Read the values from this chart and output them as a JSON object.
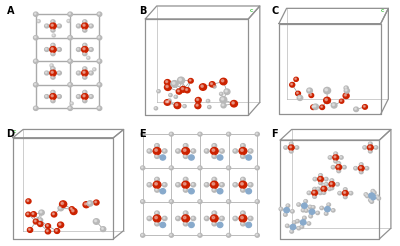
{
  "panels": [
    "A",
    "B",
    "C",
    "D",
    "E",
    "F"
  ],
  "figure_bg": "#ffffff",
  "box_color": "#909090",
  "red_color": "#cc2200",
  "gray_color": "#b8b8b8",
  "silver_color": "#d0d0d0",
  "blue_color": "#88aacc",
  "green_color": "#00aa00",
  "bond_color": "#999999",
  "label_color": "#000000"
}
